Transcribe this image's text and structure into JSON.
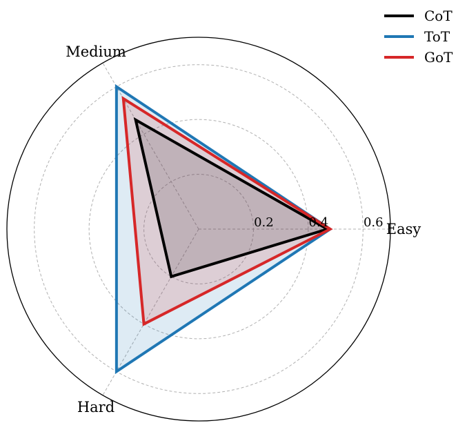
{
  "chart_data": {
    "type": "radar",
    "categories": [
      "Easy",
      "Medium",
      "Hard"
    ],
    "rlim": [
      0,
      0.7
    ],
    "rticks": [
      0.2,
      0.4,
      0.6
    ],
    "rtick_labels": [
      "0.2",
      "0.4",
      "0.6"
    ],
    "grid": true,
    "legend_position": "top-right",
    "series": [
      {
        "name": "CoT",
        "color": "#000000",
        "values": [
          0.47,
          0.46,
          0.2
        ]
      },
      {
        "name": "ToT",
        "color": "#1f77b4",
        "values": [
          0.48,
          0.6,
          0.6
        ]
      },
      {
        "name": "GoT",
        "color": "#d62728",
        "values": [
          0.48,
          0.55,
          0.4
        ]
      }
    ]
  }
}
